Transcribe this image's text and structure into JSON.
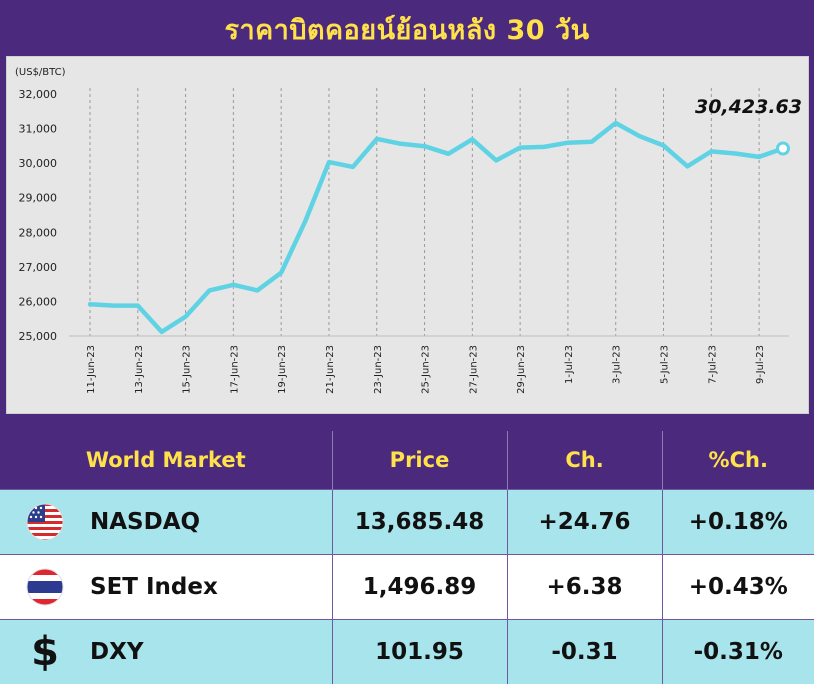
{
  "title": "ราคาบิตคอยน์ย้อนหลัง 30 วัน",
  "chart_data": {
    "type": "line",
    "unit_label": "(US$/BTC)",
    "ylim": [
      25000,
      32000
    ],
    "y_ticks": [
      "32,000",
      "31,000",
      "30,000",
      "29,000",
      "28,000",
      "27,000",
      "26,000",
      "25,000"
    ],
    "x": [
      "11-Jun-23",
      "12-Jun-23",
      "13-Jun-23",
      "14-Jun-23",
      "15-Jun-23",
      "16-Jun-23",
      "17-Jun-23",
      "18-Jun-23",
      "19-Jun-23",
      "20-Jun-23",
      "21-Jun-23",
      "22-Jun-23",
      "23-Jun-23",
      "24-Jun-23",
      "25-Jun-23",
      "26-Jun-23",
      "27-Jun-23",
      "28-Jun-23",
      "29-Jun-23",
      "30-Jun-23",
      "1-Jul-23",
      "2-Jul-23",
      "3-Jul-23",
      "4-Jul-23",
      "5-Jul-23",
      "6-Jul-23",
      "7-Jul-23",
      "8-Jul-23",
      "9-Jul-23",
      "10-Jul-23"
    ],
    "x_tick_labels": [
      "11-Jun-23",
      "13-Jun-23",
      "15-Jun-23",
      "17-Jun-23",
      "19-Jun-23",
      "21-Jun-23",
      "23-Jun-23",
      "25-Jun-23",
      "27-Jun-23",
      "29-Jun-23",
      "1-Jul-23",
      "3-Jul-23",
      "5-Jul-23",
      "7-Jul-23",
      "9-Jul-23"
    ],
    "values": [
      25920,
      25880,
      25880,
      25120,
      25560,
      26320,
      26480,
      26320,
      26830,
      28310,
      30030,
      29890,
      30700,
      30560,
      30490,
      30270,
      30690,
      30080,
      30450,
      30470,
      30590,
      30620,
      31160,
      30780,
      30510,
      29910,
      30340,
      30280,
      30180,
      30423.63
    ],
    "last_value_label": "30,423.63",
    "line_color": "#5fd3e3",
    "grid": "vertical dashed"
  },
  "table": {
    "headers": [
      "World Market",
      "Price",
      "Ch.",
      "%Ch."
    ],
    "rows": [
      {
        "icon": "us-flag-icon",
        "name": "NASDAQ",
        "price": "13,685.48",
        "change": "+24.76",
        "pct": "+0.18%"
      },
      {
        "icon": "thai-flag-icon",
        "name": "SET Index",
        "price": "1,496.89",
        "change": "+6.38",
        "pct": "+0.43%"
      },
      {
        "icon": "dollar-icon",
        "name": "DXY",
        "price": "101.95",
        "change": "-0.31",
        "pct": "-0.31%"
      }
    ]
  },
  "colors": {
    "header_bg": "#4b2a7d",
    "header_text": "#ffe14a",
    "row_odd": "#a8e4ec",
    "row_even": "#ffffff"
  }
}
